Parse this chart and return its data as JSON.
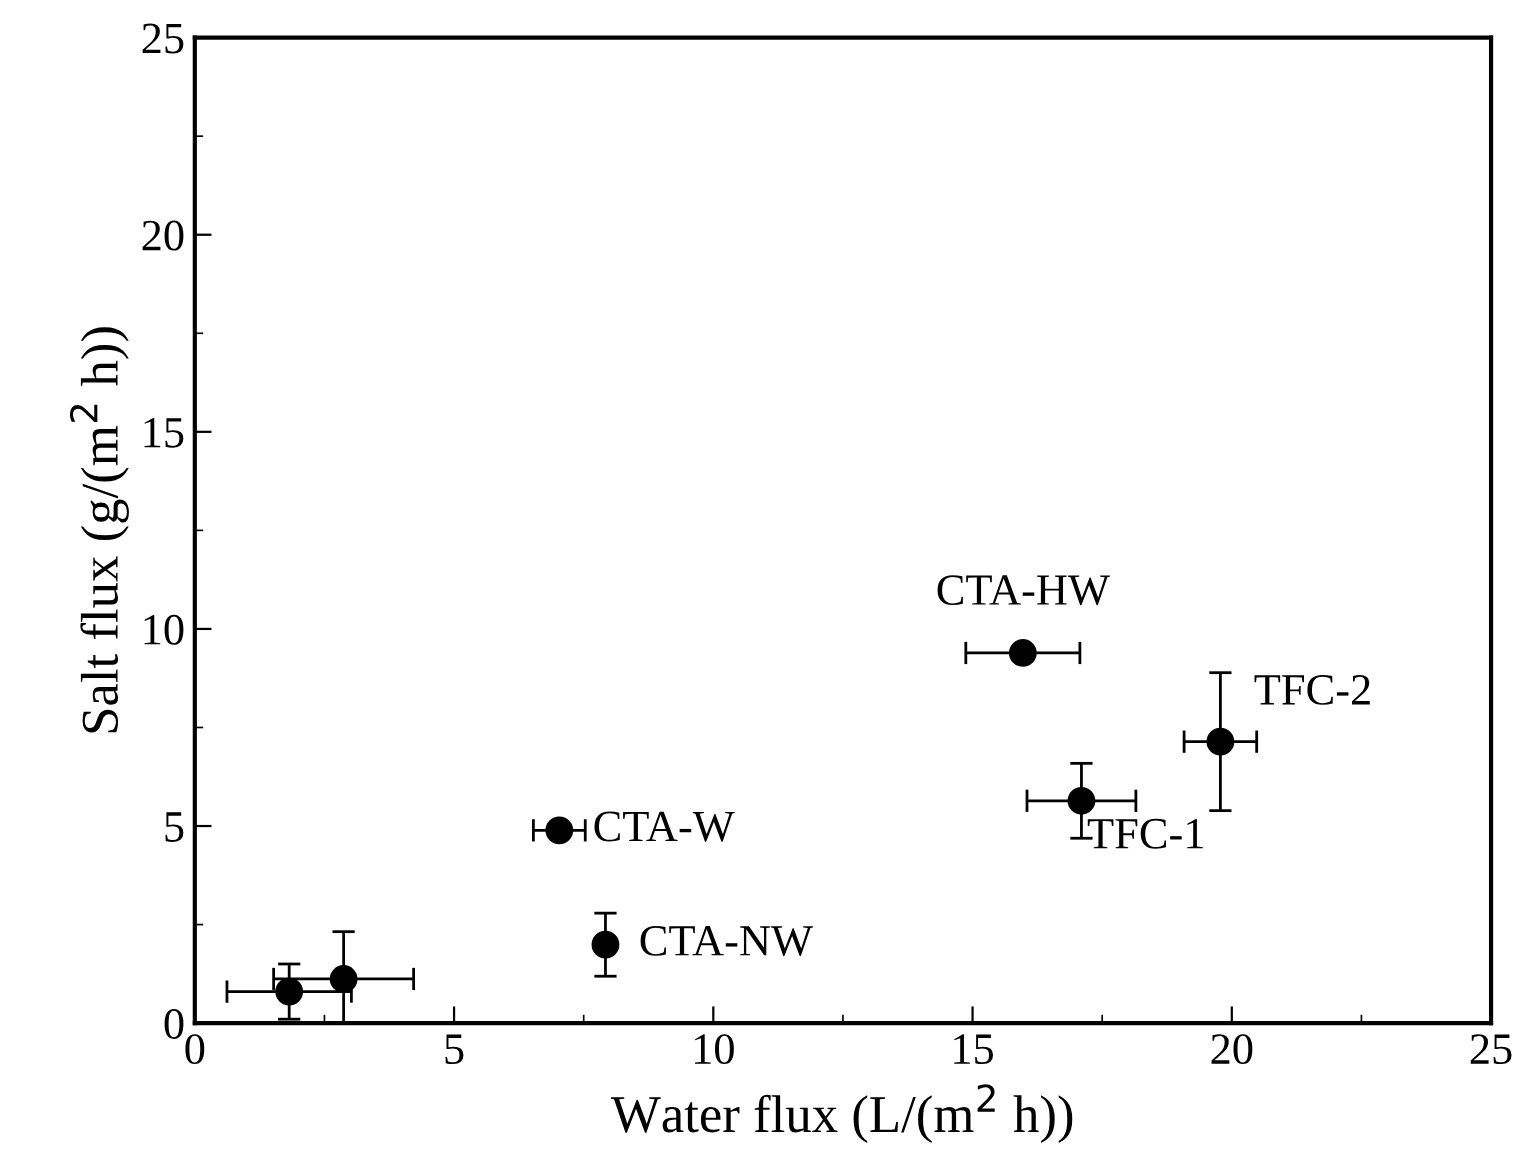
{
  "chart_data": {
    "type": "scatter",
    "xlabel": "Water flux (L/(m$^{2}$ h))",
    "ylabel": "Salt flux (g/(m$^{2}$ h))",
    "x": [
      1.82,
      2.87,
      7.03,
      7.92,
      15.97,
      17.1,
      19.78
    ],
    "values": [
      0.8,
      1.12,
      4.89,
      1.99,
      9.39,
      5.64,
      7.14
    ],
    "errors": [
      0.7,
      1.2,
      null,
      0.8,
      null,
      0.95,
      1.75
    ],
    "xerrors": [
      1.2,
      1.35,
      0.5,
      null,
      1.1,
      1.05,
      0.7
    ],
    "color": "#000000",
    "marker": "circle",
    "xlim": [
      0,
      25
    ],
    "ylim": [
      0,
      25
    ],
    "xticks": [
      0,
      5,
      10,
      15,
      20,
      25
    ],
    "yticks": [
      0,
      5,
      10,
      15,
      20,
      25
    ],
    "grid": false,
    "legend": false,
    "annotations": [
      {
        "text": "CTA-W",
        "x": 7.03,
        "y": 4.89
      },
      {
        "text": "CTA-NW",
        "x": 7.92,
        "y": 1.99
      },
      {
        "text": "CTA-HW",
        "x": 15.97,
        "y": 9.39
      },
      {
        "text": "TFC-1",
        "x": 17.1,
        "y": 5.64
      },
      {
        "text": "TFC-2",
        "x": 19.78,
        "y": 7.14
      }
    ]
  }
}
